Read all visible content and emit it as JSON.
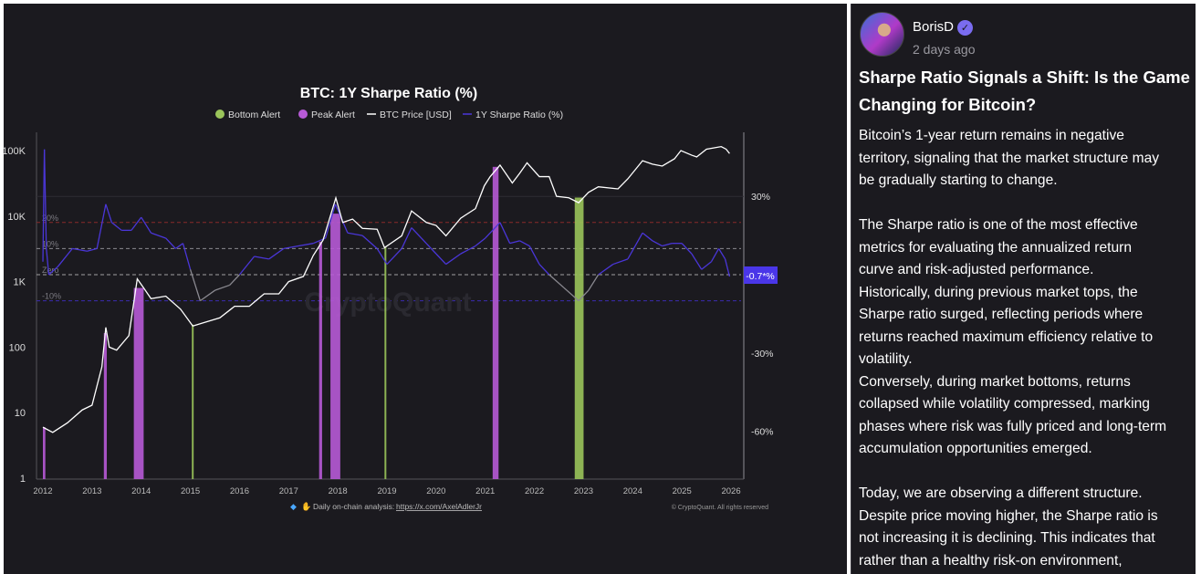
{
  "post": {
    "author": "BorisD",
    "time": "2 days ago",
    "title": "Sharpe Ratio Signals a Shift: Is the Game\nChanging for Bitcoin?",
    "body": "Bitcoin’s 1-year return remains in negative\nterritory, signaling that the market structure may\nbe gradually starting to change.\n\nThe Sharpe ratio is one of the most effective\nmetrics for evaluating the annualized return\ncurve and risk-adjusted performance.\nHistorically, during previous market tops, the\nSharpe ratio surged, reflecting periods where\nreturns reached maximum efficiency relative to\nvolatility.\nConversely, during market bottoms, returns\ncollapsed while volatility compressed, marking\nphases where risk was fully priced and long-term\naccumulation opportunities emerged.\n\nToday, we are observing a different structure.\nDespite price moving higher, the Sharpe ratio is\nnot increasing  it is declining. This indicates that\nrather than a healthy risk-on environment,"
  },
  "chart_data": {
    "type": "line",
    "title": "BTC: 1Y Sharpe Ratio (%)",
    "legend": [
      "Bottom Alert",
      "Peak Alert",
      "BTC Price [USD]",
      "1Y Sharpe Ratio (%)"
    ],
    "legend_placement": "top-center",
    "watermark": "CryptoQuant",
    "footer": "Daily on-chain analysis:",
    "footer_link": "https://x.com/AxelAdlerJr",
    "copyright": "© CryptoQuant. All rights reserved",
    "colors": {
      "bottom": "#9ac45a",
      "peak": "#b75ad6",
      "price": "#ffffff",
      "sharpe": "#4a36d8",
      "sharpe_neg": "#8a8990",
      "badge": "#4a36e8"
    },
    "x_ticks": [
      "2012",
      "2013",
      "2014",
      "2015",
      "2016",
      "2017",
      "2018",
      "2019",
      "2020",
      "2021",
      "2022",
      "2023",
      "2024",
      "2025",
      "2026"
    ],
    "xlim": [
      2011.9,
      2026.2
    ],
    "left_axis": {
      "scale": "log",
      "ylim": [
        1,
        150000
      ],
      "ticks": [
        {
          "v": 100000,
          "label": "100K"
        },
        {
          "v": 10000,
          "label": "10K"
        },
        {
          "v": 1000,
          "label": "1K"
        },
        {
          "v": 100,
          "label": "100"
        },
        {
          "v": 10,
          "label": "10"
        },
        {
          "v": 1,
          "label": "1"
        }
      ]
    },
    "right_axis": {
      "ticks": [
        {
          "v": 30,
          "label": "30%"
        },
        {
          "v": -30,
          "label": "-30%"
        },
        {
          "v": -60,
          "label": "-60%"
        }
      ]
    },
    "ref_lines": [
      {
        "v": 20,
        "label": "20%",
        "color": "#8a2a2a"
      },
      {
        "v": 10,
        "label": "10%",
        "color": "#8a8990"
      },
      {
        "v": 0,
        "label": "Zero",
        "color": "#a0a0a0"
      },
      {
        "v": -10,
        "label": "-10%",
        "color": "#3a2ab0"
      }
    ],
    "current_value_label": "-0.7*%",
    "price": [
      [
        2012.0,
        6
      ],
      [
        2012.2,
        5
      ],
      [
        2012.5,
        7
      ],
      [
        2012.8,
        11
      ],
      [
        2013.0,
        13
      ],
      [
        2013.2,
        50
      ],
      [
        2013.28,
        200
      ],
      [
        2013.35,
        100
      ],
      [
        2013.5,
        90
      ],
      [
        2013.75,
        150
      ],
      [
        2013.92,
        1100
      ],
      [
        2014.05,
        800
      ],
      [
        2014.2,
        550
      ],
      [
        2014.5,
        600
      ],
      [
        2014.8,
        380
      ],
      [
        2015.05,
        210
      ],
      [
        2015.3,
        240
      ],
      [
        2015.6,
        280
      ],
      [
        2015.9,
        420
      ],
      [
        2016.2,
        420
      ],
      [
        2016.5,
        650
      ],
      [
        2016.8,
        650
      ],
      [
        2017.0,
        1000
      ],
      [
        2017.3,
        1200
      ],
      [
        2017.5,
        2500
      ],
      [
        2017.7,
        4300
      ],
      [
        2017.96,
        19000
      ],
      [
        2018.1,
        8000
      ],
      [
        2018.3,
        9000
      ],
      [
        2018.5,
        6500
      ],
      [
        2018.8,
        6300
      ],
      [
        2018.95,
        3300
      ],
      [
        2019.3,
        5000
      ],
      [
        2019.5,
        12000
      ],
      [
        2019.8,
        8000
      ],
      [
        2020.0,
        7200
      ],
      [
        2020.2,
        5000
      ],
      [
        2020.5,
        9300
      ],
      [
        2020.8,
        13000
      ],
      [
        2020.98,
        29000
      ],
      [
        2021.1,
        40000
      ],
      [
        2021.3,
        60000
      ],
      [
        2021.55,
        32000
      ],
      [
        2021.7,
        45000
      ],
      [
        2021.85,
        65000
      ],
      [
        2022.1,
        40000
      ],
      [
        2022.3,
        40000
      ],
      [
        2022.45,
        20000
      ],
      [
        2022.7,
        19000
      ],
      [
        2022.9,
        16000
      ],
      [
        2023.1,
        23000
      ],
      [
        2023.3,
        28000
      ],
      [
        2023.7,
        26000
      ],
      [
        2023.9,
        37000
      ],
      [
        2024.2,
        70000
      ],
      [
        2024.4,
        62000
      ],
      [
        2024.6,
        58000
      ],
      [
        2024.85,
        75000
      ],
      [
        2024.98,
        100000
      ],
      [
        2025.2,
        85000
      ],
      [
        2025.3,
        80000
      ],
      [
        2025.5,
        105000
      ],
      [
        2025.8,
        115000
      ],
      [
        2025.9,
        105000
      ],
      [
        2025.97,
        90000
      ]
    ],
    "sharpe": [
      [
        2012.0,
        5
      ],
      [
        2012.03,
        48
      ],
      [
        2012.07,
        10
      ],
      [
        2012.12,
        0
      ],
      [
        2012.3,
        3
      ],
      [
        2012.6,
        10
      ],
      [
        2012.9,
        9
      ],
      [
        2013.1,
        10
      ],
      [
        2013.28,
        27
      ],
      [
        2013.4,
        20
      ],
      [
        2013.6,
        17
      ],
      [
        2013.8,
        17
      ],
      [
        2014.0,
        22
      ],
      [
        2014.2,
        16
      ],
      [
        2014.5,
        14
      ],
      [
        2014.7,
        10
      ],
      [
        2014.85,
        12
      ],
      [
        2015.0,
        2
      ],
      [
        2015.2,
        -10
      ],
      [
        2015.5,
        -6
      ],
      [
        2015.8,
        -4
      ],
      [
        2016.0,
        0
      ],
      [
        2016.3,
        7
      ],
      [
        2016.6,
        6
      ],
      [
        2016.9,
        10
      ],
      [
        2017.2,
        11
      ],
      [
        2017.5,
        12
      ],
      [
        2017.75,
        14
      ],
      [
        2017.95,
        27
      ],
      [
        2018.2,
        16
      ],
      [
        2018.5,
        15
      ],
      [
        2018.8,
        10
      ],
      [
        2019.0,
        4
      ],
      [
        2019.3,
        10
      ],
      [
        2019.5,
        18
      ],
      [
        2019.8,
        12
      ],
      [
        2020.0,
        8
      ],
      [
        2020.2,
        4
      ],
      [
        2020.5,
        8
      ],
      [
        2020.8,
        11
      ],
      [
        2021.0,
        14
      ],
      [
        2021.3,
        20
      ],
      [
        2021.5,
        12
      ],
      [
        2021.7,
        13
      ],
      [
        2021.9,
        11
      ],
      [
        2022.1,
        4
      ],
      [
        2022.3,
        0
      ],
      [
        2022.6,
        -5
      ],
      [
        2022.9,
        -10
      ],
      [
        2023.1,
        -6
      ],
      [
        2023.3,
        0
      ],
      [
        2023.6,
        4
      ],
      [
        2023.9,
        6
      ],
      [
        2024.2,
        16
      ],
      [
        2024.4,
        13
      ],
      [
        2024.6,
        11
      ],
      [
        2024.8,
        12
      ],
      [
        2025.0,
        12
      ],
      [
        2025.2,
        8
      ],
      [
        2025.4,
        2
      ],
      [
        2025.6,
        5
      ],
      [
        2025.75,
        10
      ],
      [
        2025.88,
        6
      ],
      [
        2025.97,
        -0.7
      ]
    ],
    "peak_alerts": [
      [
        2012.0,
        2012.05
      ],
      [
        2013.24,
        2013.3
      ],
      [
        2013.85,
        2014.05
      ],
      [
        2017.62,
        2017.68
      ],
      [
        2017.85,
        2018.05
      ],
      [
        2021.15,
        2021.27
      ]
    ],
    "bottom_alerts": [
      [
        2015.03,
        2015.06
      ],
      [
        2018.95,
        2018.98
      ],
      [
        2022.82,
        2023.0
      ]
    ]
  }
}
